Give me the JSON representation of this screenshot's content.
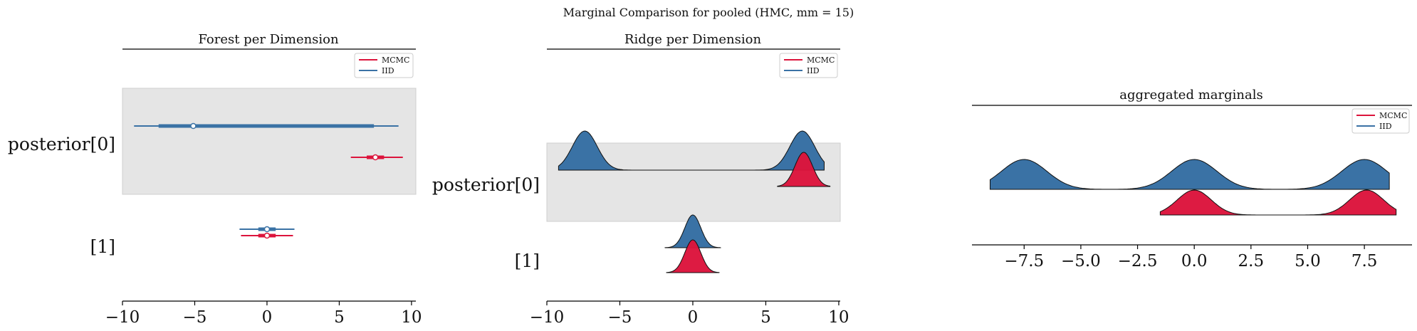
{
  "figure": {
    "suptitle": "Marginal Comparison for pooled (HMC, mm = 15)"
  },
  "colors": {
    "mcmc": "#dc143c",
    "iid": "#3a72a5",
    "band": "#e5e5e5"
  },
  "chart_data": [
    {
      "type": "forest",
      "title": "Forest per Dimension",
      "xlim": [
        -10,
        10.3
      ],
      "xticks": [
        "−10",
        "−5",
        "0",
        "5",
        "10"
      ],
      "xtick_values": [
        -10,
        -5,
        0,
        5,
        10
      ],
      "ylabels": [
        "posterior[0]",
        "[1]"
      ],
      "legend": {
        "placement": "upper-right",
        "entries": [
          "MCMC",
          "IID"
        ]
      },
      "rows": [
        {
          "label": "posterior[0]",
          "series": [
            {
              "name": "IID",
              "median": -5.1,
              "hdi_94": [
                -9.2,
                9.1
              ],
              "hdi_50": [
                -7.5,
                7.4
              ]
            },
            {
              "name": "MCMC",
              "median": 7.5,
              "hdi_94": [
                5.8,
                9.4
              ],
              "hdi_50": [
                6.9,
                8.1
              ]
            }
          ]
        },
        {
          "label": "[1]",
          "series": [
            {
              "name": "IID",
              "median": 0.0,
              "hdi_94": [
                -1.9,
                1.9
              ],
              "hdi_50": [
                -0.6,
                0.6
              ]
            },
            {
              "name": "MCMC",
              "median": 0.0,
              "hdi_94": [
                -1.8,
                1.8
              ],
              "hdi_50": [
                -0.6,
                0.6
              ]
            }
          ]
        }
      ]
    },
    {
      "type": "ridge",
      "title": "Ridge per Dimension",
      "xlim": [
        -10,
        10.1
      ],
      "xticks": [
        "−10",
        "−5",
        "0",
        "5",
        "10"
      ],
      "xtick_values": [
        -10,
        -5,
        0,
        5,
        10
      ],
      "ylabels": [
        "posterior[0]",
        "[1]"
      ],
      "legend": {
        "placement": "upper-right",
        "entries": [
          "MCMC",
          "IID"
        ]
      },
      "rows": [
        {
          "label": "posterior[0]",
          "series": [
            {
              "name": "IID",
              "x_range": [
                -9.2,
                9.0
              ],
              "modes": [
                -7.4,
                7.5
              ],
              "weights": [
                0.5,
                0.5
              ],
              "sd": 0.85
            },
            {
              "name": "MCMC",
              "x_range": [
                5.8,
                9.4
              ],
              "modes": [
                7.6
              ],
              "weights": [
                1.0
              ],
              "sd": 0.6
            }
          ]
        },
        {
          "label": "[1]",
          "series": [
            {
              "name": "IID",
              "x_range": [
                -1.9,
                1.9
              ],
              "modes": [
                0.0
              ],
              "weights": [
                1.0
              ],
              "sd": 0.55
            },
            {
              "name": "MCMC",
              "x_range": [
                -1.8,
                1.8
              ],
              "modes": [
                0.0
              ],
              "weights": [
                1.0
              ],
              "sd": 0.55
            }
          ]
        }
      ]
    },
    {
      "type": "ridge",
      "title": "aggregated marginals",
      "xlim": [
        -9.8,
        9.6
      ],
      "xticks": [
        "−7.5",
        "−5.0",
        "−2.5",
        "0.0",
        "2.5",
        "5.0",
        "7.5"
      ],
      "xtick_values": [
        -7.5,
        -5.0,
        -2.5,
        0.0,
        2.5,
        5.0,
        7.5
      ],
      "legend": {
        "placement": "upper-right",
        "entries": [
          "MCMC",
          "IID"
        ]
      },
      "rows": [
        {
          "label": "",
          "series": [
            {
              "name": "IID",
              "x_range": [
                -9.0,
                8.6
              ],
              "modes": [
                -7.5,
                0.0,
                7.5
              ],
              "weights": [
                0.333,
                0.333,
                0.333
              ],
              "sd": 1.0
            },
            {
              "name": "MCMC",
              "x_range": [
                -1.5,
                8.9
              ],
              "modes": [
                0.0,
                7.6
              ],
              "weights": [
                0.5,
                0.5
              ],
              "sd": 0.75
            }
          ]
        }
      ]
    }
  ]
}
